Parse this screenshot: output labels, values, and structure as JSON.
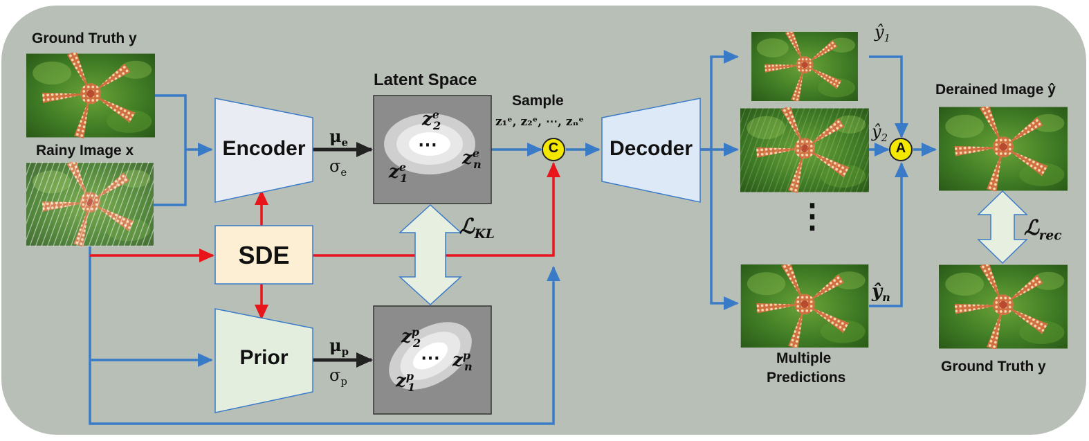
{
  "labels": {
    "ground_truth_top": "Ground Truth y",
    "rainy_image": "Rainy Image x",
    "latent_space": "Latent Space",
    "sample": "Sample",
    "sample_set": "z₁ᵉ, z₂ᵉ, ⋯, zₙᵉ",
    "encoder": "Encoder",
    "decoder": "Decoder",
    "sde": "SDE",
    "prior": "Prior",
    "mu_e": "μ",
    "mu_e_sub": "e",
    "sigma_e": "σ",
    "sigma_e_sub": "e",
    "mu_p": "μ",
    "mu_p_sub": "p",
    "sigma_p": "σ",
    "sigma_p_sub": "p",
    "loss_kl": "ℒ",
    "loss_kl_sub": "KL",
    "loss_rec": "ℒ",
    "loss_rec_sub": "rec",
    "concat_node": "C",
    "aggregate_node": "A",
    "y_hat_1": "ŷ",
    "y_hat_1_sub": "1",
    "y_hat_2": "ŷ",
    "y_hat_2_sub": "2",
    "y_hat_n": "ŷ",
    "y_hat_n_sub": "n",
    "multiple_predictions_1": "Multiple",
    "multiple_predictions_2": "Predictions",
    "derained_image": "Derained Image ŷ",
    "ground_truth_bottom": "Ground Truth y",
    "latent_e_dots": "⋯",
    "latent_p_dots": "⋯",
    "latent_e_z2": "z",
    "latent_e_z2_sup": "e",
    "latent_e_z2_sub": "2",
    "latent_e_zn": "z",
    "latent_e_zn_sup": "e",
    "latent_e_zn_sub": "n",
    "latent_e_z1": "z",
    "latent_e_z1_sup": "e",
    "latent_e_z1_sub": "1",
    "latent_p_z2": "z",
    "latent_p_z2_sup": "p",
    "latent_p_z2_sub": "2",
    "latent_p_zn": "z",
    "latent_p_zn_sup": "p",
    "latent_p_zn_sub": "n",
    "latent_p_z1": "z",
    "latent_p_z1_sup": "p",
    "latent_p_z1_sub": "1",
    "vertical_dots": "⋮"
  },
  "colors": {
    "background_panel": "#b8bfb6",
    "blue_arrow": "#3a7bc8",
    "red_arrow": "#e8151b",
    "black_arrow": "#222222",
    "encoder_fill": "#e9edf3",
    "decoder_fill": "#dde9f6",
    "prior_fill": "#e3eedf",
    "sde_fill": "#fdefd3",
    "node_fill": "#f5e800",
    "latent_bg": "#8c8c8c",
    "kl_arrow_fill": "#e6efe0"
  }
}
